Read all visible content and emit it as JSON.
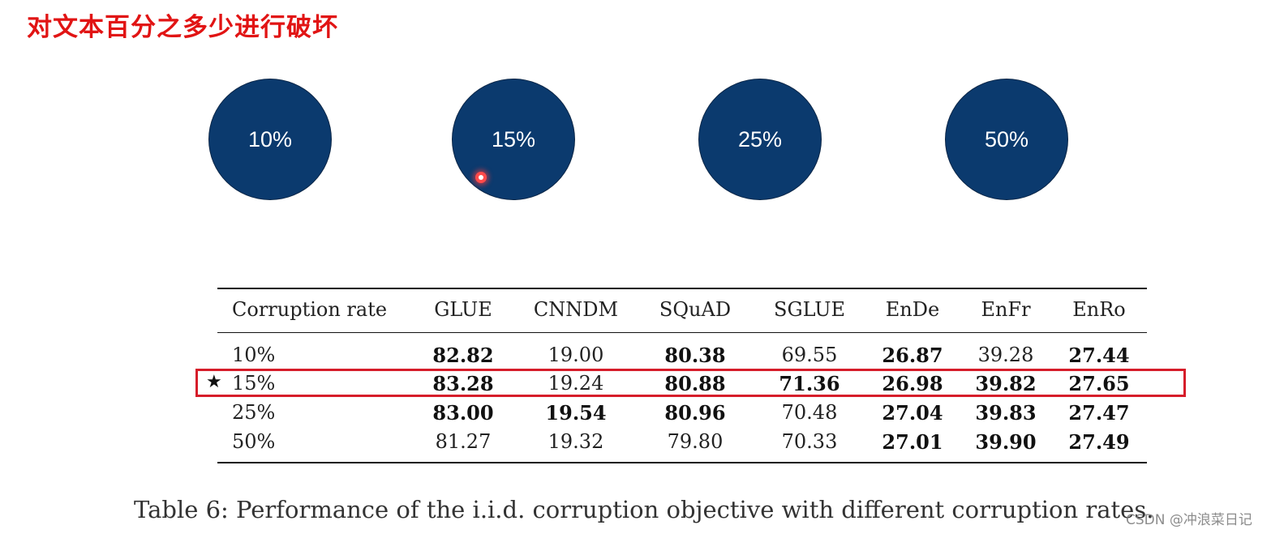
{
  "slide": {
    "title": "对文本百分之多少进行破坏",
    "circles": [
      "10%",
      "15%",
      "25%",
      "50%"
    ]
  },
  "table": {
    "headers": [
      "Corruption rate",
      "GLUE",
      "CNNDM",
      "SQuAD",
      "SGLUE",
      "EnDe",
      "EnFr",
      "EnRo"
    ],
    "star": "★",
    "rows": [
      {
        "cells": [
          "10%",
          "82.82",
          "19.00",
          "80.38",
          "69.55",
          "26.87",
          "39.28",
          "27.44"
        ],
        "bold": [
          false,
          true,
          false,
          true,
          false,
          true,
          false,
          true
        ]
      },
      {
        "cells": [
          "15%",
          "83.28",
          "19.24",
          "80.88",
          "71.36",
          "26.98",
          "39.82",
          "27.65"
        ],
        "bold": [
          false,
          true,
          false,
          true,
          true,
          true,
          true,
          true
        ]
      },
      {
        "cells": [
          "25%",
          "83.00",
          "19.54",
          "80.96",
          "70.48",
          "27.04",
          "39.83",
          "27.47"
        ],
        "bold": [
          false,
          true,
          true,
          true,
          false,
          true,
          true,
          true
        ]
      },
      {
        "cells": [
          "50%",
          "81.27",
          "19.32",
          "79.80",
          "70.33",
          "27.01",
          "39.90",
          "27.49"
        ],
        "bold": [
          false,
          false,
          false,
          false,
          false,
          true,
          true,
          true
        ]
      }
    ],
    "caption": "Table 6:   Performance of the i.i.d. corruption objective with different corruption rates."
  },
  "watermark": "CSDN @冲浪菜日记"
}
